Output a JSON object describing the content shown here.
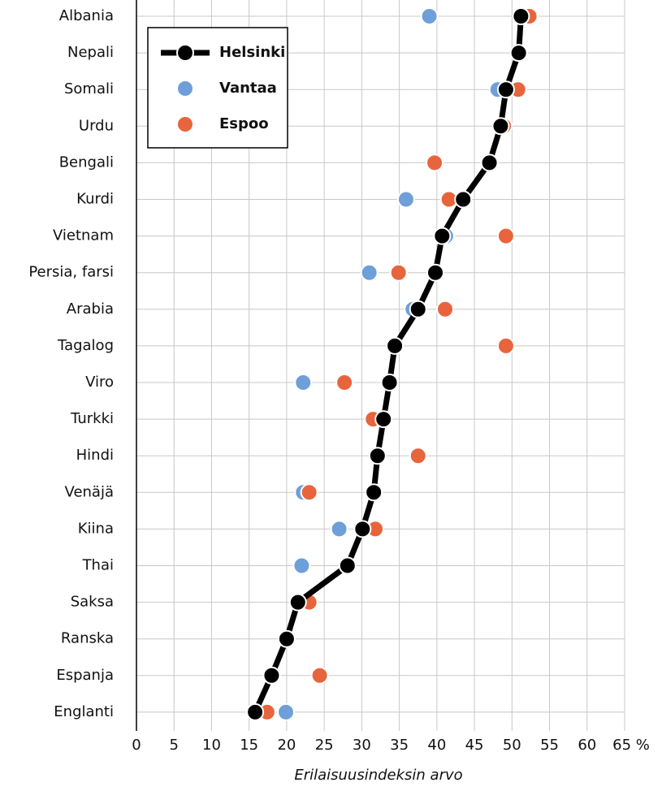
{
  "chart_data": {
    "type": "dot",
    "categories": [
      "Albania",
      "Nepali",
      "Somali",
      "Urdu",
      "Bengali",
      "Kurdi",
      "Vietnam",
      "Persia, farsi",
      "Arabia",
      "Tagalog",
      "Viro",
      "Turkki",
      "Hindi",
      "Venäjä",
      "Kiina",
      "Thai",
      "Saksa",
      "Ranska",
      "Espanja",
      "Englanti"
    ],
    "series": [
      {
        "name": "Helsinki",
        "color": "#000000",
        "values": [
          51.2,
          50.9,
          49.2,
          48.5,
          47.0,
          43.5,
          40.7,
          39.8,
          37.5,
          34.4,
          33.7,
          32.9,
          32.1,
          31.6,
          30.1,
          28.1,
          21.5,
          20.0,
          18.0,
          15.8
        ]
      },
      {
        "name": "Vantaa",
        "color": "#6f9fd8",
        "values": [
          39.0,
          null,
          48.1,
          null,
          null,
          35.9,
          41.2,
          31.0,
          36.8,
          null,
          22.2,
          null,
          null,
          22.2,
          27.0,
          22.0,
          null,
          null,
          null,
          19.9
        ]
      },
      {
        "name": "Espoo",
        "color": "#e8643c",
        "values": [
          52.3,
          null,
          50.8,
          48.9,
          39.7,
          41.6,
          49.2,
          34.9,
          41.1,
          49.2,
          27.7,
          31.5,
          37.5,
          23.0,
          31.8,
          null,
          23.0,
          null,
          24.4,
          17.4
        ]
      }
    ],
    "xlim": [
      0,
      65
    ],
    "xticks": [
      0,
      5,
      10,
      15,
      20,
      25,
      30,
      35,
      40,
      45,
      50,
      55,
      60,
      {
        "value": 65,
        "label": "65 %"
      }
    ],
    "xlabel": "Erilaisuusindeksin arvo",
    "grid": true,
    "legend": "upper left"
  }
}
